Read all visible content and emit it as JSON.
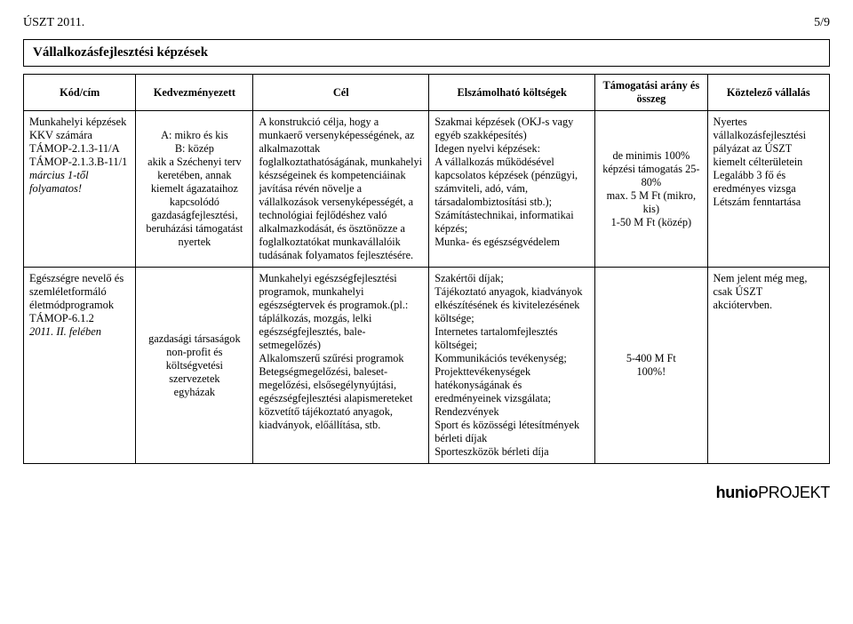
{
  "header": {
    "left": "ÚSZT 2011.",
    "right": "5/9"
  },
  "section_title": "Vállalkozásfejlesztési képzések",
  "columns": {
    "kod": "Kód/cím",
    "kedv": "Kedvezményezett",
    "cel": "Cél",
    "elsz": "Elszámolható költségek",
    "tam": "Támogatási arány és összeg",
    "kot": "Köztelező vállalás"
  },
  "rows": [
    {
      "kod_html": "<span class='nm'>Munkahelyi képzések KKV számára</span><br><span class='nm'>TÁMOP-2.1.3-11/A</span><br><span class='nm'>TÁMOP-2.1.3.B-11/1</span><br><span class='it'>március 1-től folyamatos!</span>",
      "kedv": "A: mikro és kis\nB: közép\nakik a Széchenyi terv keretében, annak kiemelt ágazataihoz kapcsolódó gazdaságfejlesztési, beruházási támogatást nyertek",
      "cel": "A konstrukció célja, hogy a munkaerő versenyképes­ségének, az alkalmazottak foglalkoztathatóságának, munkahelyi készségeinek és kompetenciáinak javítása révén növelje a vállalkozások versenyképességét, a technológiai fejlődéshez való alkalmazkodását, és ösztönözze a foglalkoztatókat munkavállalóik tudásának folyamatos fejlesztésére.",
      "elsz": "Szakmai képzések (OKJ-s vagy egyéb szakképesítés)\nIdegen nyelvi képzések:\nA vállalkozás működésével kapcsolatos képzések (pénzügyi, számviteli, adó, vám, társadalombiztosítási stb.);\nSzámítástechnikai, informatikai képzés;\nMunka- és egészségvédelem",
      "tam": "de minimis 100%\nképzési támogatás 25-80%\nmax. 5 M Ft (mikro, kis)\n1-50 M Ft (közép)",
      "kot": "Nyertes vállalkozásfejlesztési pályázat az ÚSZT kiemelt célterületein\nLegalább 3 fő és eredményes vizsga\nLétszám fenntartása"
    },
    {
      "kod_html": "<span class='nm'>Egészségre nevelő és szemléletformáló életmódprogramok</span><br><span class='nm'>TÁMOP-6.1.2</span><br><span class='it'>2011. II. felében</span>",
      "kedv": "gazdasági társaságok\nnon-profit és költségvetési szervezetek\negyházak",
      "cel": "Munkahelyi egészségfejlesztési programok, munkahelyi egészségtervek és progra­mok.(pl.: táplálkozás, mozgás, lelki egészségfejlesztés, bale­setmegelőzés)\nAlkalomszerű szűrési programok\nBetegségmegelőzési, baleset­megelőzési, elsősegély­nyújtási, egészségfejlesztési alapismereteket közvetítő tájékoztató anyagok, kiadványok, előállítása, stb.",
      "elsz": "Szakértői díjak;\nTájékoztató anyagok, kiadványok elkészítésének és kivitelezésének költsége;\nInternetes tartalomfejlesztés költségei;\nKommunikációs tevékenység;\nProjekttevékenységek hatékonyságának és eredményeinek vizsgálata;\nRendezvények\nSport és közösségi létesítmények bérleti díjak\nSporteszközök bérleti díja",
      "tam": "5-400 M Ft\n100%!",
      "kot": "Nem jelent még meg, csak ÚSZT akciótervben."
    }
  ],
  "footer": {
    "bold": "hunio",
    "light": "PROJEKT"
  }
}
